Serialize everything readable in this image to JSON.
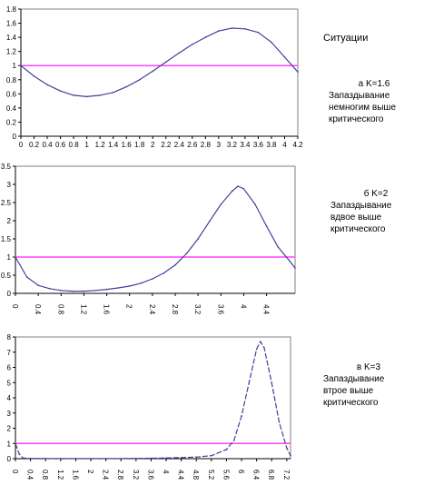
{
  "situations_label": "Ситуации",
  "colors": {
    "curve": "#4040a0",
    "threshold": "#ff40ff",
    "frame": "#808080"
  },
  "chart_data": [
    {
      "type": "line",
      "caption": "а K=1.6",
      "description_lines": [
        "Запаздывание",
        "немногим выше",
        "критического"
      ],
      "xlim": [
        0,
        4.2
      ],
      "ylim": [
        0,
        1.8
      ],
      "x_ticks": [
        0,
        0.2,
        0.4,
        0.6,
        0.8,
        1,
        1.2,
        1.4,
        1.6,
        1.8,
        2,
        2.2,
        2.4,
        2.6,
        2.8,
        3,
        3.2,
        3.4,
        3.6,
        3.8,
        4,
        4.2
      ],
      "x_tick_labels": [
        "0",
        "0.2",
        "0.4",
        "0.6",
        "0.8",
        "1",
        "1.2",
        "1.4",
        "1.6",
        "1.8",
        "2",
        "2.2",
        "2.4",
        "2.6",
        "2.8",
        "3",
        "3.2",
        "3.4",
        "3.6",
        "3.8",
        "4",
        "4.2"
      ],
      "y_ticks": [
        0,
        0.2,
        0.4,
        0.6,
        0.8,
        1,
        1.2,
        1.4,
        1.6,
        1.8
      ],
      "y_tick_labels": [
        "0",
        "0.2",
        "0.4",
        "0.6",
        "0.8",
        "1",
        "1.2",
        "1.4",
        "1.6",
        "1.8"
      ],
      "threshold": 1,
      "x": [
        0,
        0.2,
        0.4,
        0.6,
        0.8,
        1,
        1.2,
        1.4,
        1.6,
        1.8,
        2,
        2.2,
        2.4,
        2.6,
        2.8,
        3,
        3.2,
        3.4,
        3.6,
        3.8,
        4,
        4.2
      ],
      "y": [
        1.0,
        0.85,
        0.73,
        0.64,
        0.58,
        0.56,
        0.58,
        0.62,
        0.7,
        0.8,
        0.92,
        1.05,
        1.18,
        1.3,
        1.4,
        1.49,
        1.53,
        1.52,
        1.47,
        1.33,
        1.12,
        0.91
      ]
    },
    {
      "type": "line",
      "caption": "б K=2",
      "description_lines": [
        "Запаздывание",
        "вдвое выше",
        "критического"
      ],
      "xlim": [
        0,
        4.9
      ],
      "ylim": [
        0,
        3.5
      ],
      "x_ticks": [
        0,
        0.4,
        0.8,
        1.2,
        1.6,
        2,
        2.4,
        2.8,
        3.2,
        3.6,
        4,
        4.4
      ],
      "x_tick_labels": [
        "0",
        "0.4",
        "0.8",
        "1.2",
        "1.6",
        "2",
        "2.4",
        "2.8",
        "3.2",
        "3.6",
        "4",
        "4.4"
      ],
      "y_ticks": [
        0,
        0.5,
        1,
        1.5,
        2,
        2.5,
        3,
        3.5
      ],
      "y_tick_labels": [
        "0",
        "0.5",
        "1",
        "1.5",
        "2",
        "2.5",
        "3",
        "3.5"
      ],
      "threshold": 1,
      "x": [
        0,
        0.2,
        0.4,
        0.6,
        0.8,
        1.0,
        1.2,
        1.4,
        1.6,
        1.8,
        2.0,
        2.2,
        2.4,
        2.6,
        2.8,
        3.0,
        3.2,
        3.4,
        3.6,
        3.8,
        3.9,
        4.0,
        4.2,
        4.4,
        4.6,
        4.8,
        4.9
      ],
      "y": [
        1.0,
        0.45,
        0.22,
        0.13,
        0.08,
        0.06,
        0.06,
        0.08,
        0.11,
        0.15,
        0.2,
        0.28,
        0.4,
        0.56,
        0.78,
        1.1,
        1.5,
        1.98,
        2.45,
        2.82,
        2.95,
        2.88,
        2.45,
        1.85,
        1.28,
        0.9,
        0.7
      ]
    },
    {
      "type": "line",
      "caption": "в K=3",
      "description_lines": [
        "Запаздывание",
        "втрое выше",
        "критического"
      ],
      "xlim": [
        0,
        7.3
      ],
      "ylim": [
        0,
        8
      ],
      "x_ticks": [
        0,
        0.4,
        0.8,
        1.2,
        1.6,
        2,
        2.4,
        2.8,
        3.2,
        3.6,
        4,
        4.4,
        4.8,
        5.2,
        5.6,
        6,
        6.4,
        6.8,
        7.2
      ],
      "x_tick_labels": [
        "0",
        "0.4",
        "0.8",
        "1.2",
        "1.6",
        "2",
        "2.4",
        "2.8",
        "3.2",
        "3.6",
        "4",
        "4.4",
        "4.8",
        "5.2",
        "5.6",
        "6",
        "6.4",
        "6.8",
        "7.2"
      ],
      "y_ticks": [
        0,
        1,
        2,
        3,
        4,
        5,
        6,
        7,
        8
      ],
      "y_tick_labels": [
        "0",
        "1",
        "2",
        "3",
        "4",
        "5",
        "6",
        "7",
        "8"
      ],
      "threshold": 1,
      "x": [
        0,
        0.1,
        0.2,
        0.4,
        0.8,
        1.2,
        1.6,
        2.0,
        2.4,
        2.8,
        3.2,
        3.6,
        4.0,
        4.4,
        4.8,
        5.2,
        5.6,
        5.8,
        6.0,
        6.2,
        6.4,
        6.5,
        6.6,
        6.8,
        7.0,
        7.2,
        7.3
      ],
      "y": [
        1.0,
        0.3,
        0.05,
        0.02,
        0.01,
        0.01,
        0.01,
        0.01,
        0.01,
        0.01,
        0.02,
        0.03,
        0.05,
        0.07,
        0.1,
        0.2,
        0.6,
        1.2,
        2.8,
        5.0,
        7.2,
        7.7,
        7.3,
        5.0,
        2.4,
        0.7,
        0.2
      ]
    }
  ]
}
